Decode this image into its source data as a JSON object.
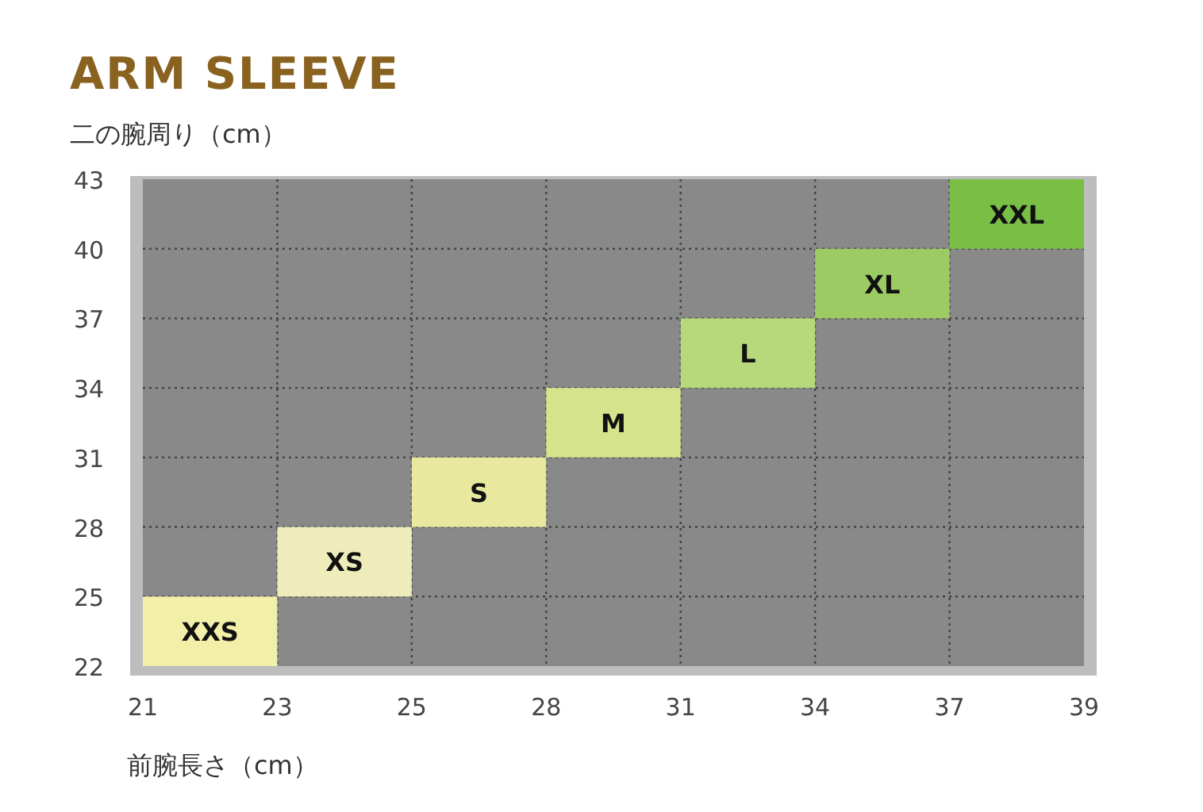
{
  "chart_data": {
    "type": "bar",
    "title": "ARM SLEEVE",
    "xlabel": "前腕長さ（cm）",
    "ylabel": "二の腕周り（cm）",
    "categories": [
      null,
      null,
      null,
      null,
      null,
      null,
      null
    ],
    "base": [
      22,
      25,
      28,
      31,
      34,
      37,
      40
    ],
    "values": [
      3,
      3,
      3,
      3,
      3,
      3,
      3
    ],
    "value_labels": [
      "XXS",
      "XS",
      "S",
      "M",
      "L",
      "XL",
      "XXL"
    ],
    "colors": [
      "#f2efa8",
      "#efecbb",
      "#e8e89f",
      "#d5e38c",
      "#b6d97b",
      "#9ccb63",
      "#79bf46"
    ],
    "annotations": [
      "21",
      "23",
      "25",
      "28",
      "31",
      "34",
      "37",
      "39"
    ],
    "ylim": [
      22,
      43
    ],
    "yticks": [
      22,
      25,
      28,
      31,
      34,
      37,
      40,
      43
    ],
    "grid": true
  }
}
